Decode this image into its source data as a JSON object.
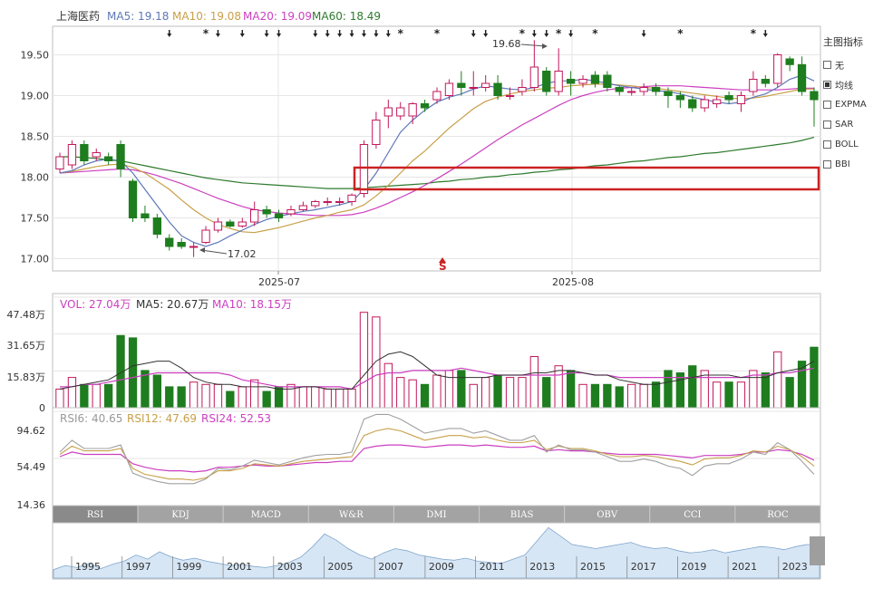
{
  "header": {
    "stock_name": "上海医药",
    "ma5": "MA5: 19.18",
    "ma10": "MA10: 19.08",
    "ma20": "MA20: 19.09",
    "ma60": "MA60: 18.49"
  },
  "colors": {
    "up": "#c2185b",
    "down": "#1e7d1e",
    "ma5": "#5e77b8",
    "ma10": "#c8a048",
    "ma20": "#cc3fc0",
    "ma60": "#2d7a2d",
    "highlight": "#cc2222"
  },
  "side_panel": {
    "title": "主图指标",
    "items": [
      {
        "label": "无",
        "checked": false
      },
      {
        "label": "均线",
        "checked": true
      },
      {
        "label": "EXPMA",
        "checked": false
      },
      {
        "label": "SAR",
        "checked": false
      },
      {
        "label": "BOLL",
        "checked": false
      },
      {
        "label": "BBI",
        "checked": false
      }
    ]
  },
  "main_axis": {
    "ticks": [
      "19.50",
      "19.00",
      "18.50",
      "18.00",
      "17.50",
      "17.00"
    ],
    "x_ticks": [
      "2025-07",
      "2025-08"
    ],
    "high_label": "19.68",
    "low_label": "17.02",
    "s_marker": "S"
  },
  "volume_panel": {
    "vol": "VOL: 27.04万",
    "ma5": "MA5: 20.67万",
    "ma10": "MA10: 18.15万",
    "ticks": [
      "47.48万",
      "31.65万",
      "15.83万",
      "0"
    ]
  },
  "rsi_panel": {
    "rsi6": "RSI6: 40.65",
    "rsi12": "RSI12: 47.69",
    "rsi24": "RSI24: 52.53",
    "ticks": [
      "94.62",
      "54.49",
      "14.36"
    ]
  },
  "tabs": [
    "RSI",
    "KDJ",
    "MACD",
    "W&R",
    "DMI",
    "BIAS",
    "OBV",
    "CCI",
    "ROC"
  ],
  "timeline_years": [
    "1995",
    "1997",
    "1999",
    "2001",
    "2003",
    "2005",
    "2007",
    "2009",
    "2011",
    "2013",
    "2015",
    "2017",
    "2019",
    "2021",
    "2023"
  ],
  "chart_data": {
    "type": "candlestick",
    "yrange": [
      16.85,
      19.85
    ],
    "candles": [
      [
        18.1,
        18.25,
        18.3,
        18.05
      ],
      [
        18.15,
        18.4,
        18.45,
        18.1
      ],
      [
        18.4,
        18.2,
        18.45,
        18.15
      ],
      [
        18.25,
        18.3,
        18.35,
        18.2
      ],
      [
        18.25,
        18.2,
        18.3,
        18.15
      ],
      [
        18.4,
        18.1,
        18.45,
        18.0
      ],
      [
        17.95,
        17.5,
        17.98,
        17.45
      ],
      [
        17.55,
        17.5,
        17.65,
        17.45
      ],
      [
        17.5,
        17.3,
        17.55,
        17.25
      ],
      [
        17.25,
        17.15,
        17.3,
        17.1
      ],
      [
        17.2,
        17.15,
        17.25,
        17.12
      ],
      [
        17.15,
        17.15,
        17.2,
        17.02
      ],
      [
        17.2,
        17.35,
        17.4,
        17.18
      ],
      [
        17.35,
        17.45,
        17.5,
        17.32
      ],
      [
        17.45,
        17.4,
        17.48,
        17.38
      ],
      [
        17.4,
        17.45,
        17.5,
        17.38
      ],
      [
        17.45,
        17.6,
        17.7,
        17.4
      ],
      [
        17.6,
        17.55,
        17.65,
        17.5
      ],
      [
        17.55,
        17.5,
        17.6,
        17.45
      ],
      [
        17.55,
        17.6,
        17.65,
        17.52
      ],
      [
        17.6,
        17.65,
        17.7,
        17.58
      ],
      [
        17.65,
        17.7,
        17.72,
        17.62
      ],
      [
        17.7,
        17.7,
        17.75,
        17.65
      ],
      [
        17.7,
        17.7,
        17.75,
        17.65
      ],
      [
        17.7,
        17.78,
        17.8,
        17.65
      ],
      [
        17.8,
        18.4,
        18.45,
        17.75
      ],
      [
        18.4,
        18.7,
        18.8,
        18.35
      ],
      [
        18.75,
        18.85,
        18.95,
        18.6
      ],
      [
        18.75,
        18.85,
        18.92,
        18.7
      ],
      [
        18.75,
        18.9,
        18.92,
        18.65
      ],
      [
        18.9,
        18.85,
        18.95,
        18.8
      ],
      [
        18.95,
        19.05,
        19.1,
        18.9
      ],
      [
        19.0,
        19.15,
        19.2,
        18.95
      ],
      [
        19.15,
        19.1,
        19.3,
        19.0
      ],
      [
        19.1,
        19.1,
        19.3,
        19.0
      ],
      [
        19.1,
        19.15,
        19.25,
        19.05
      ],
      [
        19.15,
        19.0,
        19.25,
        18.95
      ],
      [
        19.0,
        19.0,
        19.1,
        18.95
      ],
      [
        19.05,
        19.1,
        19.2,
        19.0
      ],
      [
        19.1,
        19.35,
        19.68,
        19.05
      ],
      [
        19.3,
        19.05,
        19.35,
        19.0
      ],
      [
        19.05,
        19.3,
        19.58,
        19.0
      ],
      [
        19.2,
        19.15,
        19.3,
        19.0
      ],
      [
        19.15,
        19.2,
        19.25,
        19.1
      ],
      [
        19.25,
        19.15,
        19.3,
        19.1
      ],
      [
        19.25,
        19.1,
        19.3,
        19.05
      ],
      [
        19.1,
        19.05,
        19.12,
        19.0
      ],
      [
        19.05,
        19.05,
        19.1,
        19.0
      ],
      [
        19.05,
        19.1,
        19.15,
        19.0
      ],
      [
        19.1,
        19.05,
        19.15,
        19.0
      ],
      [
        19.05,
        19.0,
        19.1,
        18.85
      ],
      [
        19.0,
        18.95,
        19.05,
        18.85
      ],
      [
        18.95,
        18.85,
        19.0,
        18.8
      ],
      [
        18.85,
        18.95,
        19.0,
        18.8
      ],
      [
        18.9,
        18.95,
        19.0,
        18.85
      ],
      [
        19.0,
        18.95,
        19.05,
        18.9
      ],
      [
        18.9,
        19.0,
        19.05,
        18.8
      ],
      [
        19.05,
        19.2,
        19.3,
        19.0
      ],
      [
        19.2,
        19.15,
        19.25,
        19.1
      ],
      [
        19.15,
        19.5,
        19.52,
        19.1
      ],
      [
        19.45,
        19.38,
        19.48,
        19.3
      ],
      [
        19.38,
        19.05,
        19.48,
        19.0
      ],
      [
        19.05,
        18.95,
        19.1,
        18.62
      ]
    ],
    "ma5": [
      18.05,
      18.08,
      18.15,
      18.2,
      18.22,
      18.2,
      18.05,
      17.85,
      17.65,
      17.45,
      17.28,
      17.2,
      17.15,
      17.2,
      17.28,
      17.35,
      17.42,
      17.48,
      17.52,
      17.55,
      17.58,
      17.6,
      17.63,
      17.66,
      17.7,
      17.85,
      18.05,
      18.3,
      18.55,
      18.7,
      18.82,
      18.92,
      18.98,
      19.02,
      19.08,
      19.12,
      19.1,
      19.08,
      19.07,
      19.1,
      19.15,
      19.18,
      19.18,
      19.2,
      19.18,
      19.15,
      19.12,
      19.1,
      19.08,
      19.06,
      19.05,
      19.02,
      18.98,
      18.95,
      18.92,
      18.9,
      18.92,
      18.98,
      19.02,
      19.1,
      19.2,
      19.25,
      19.18
    ],
    "ma10": [
      18.05,
      18.07,
      18.1,
      18.13,
      18.15,
      18.16,
      18.12,
      18.05,
      17.95,
      17.85,
      17.72,
      17.6,
      17.5,
      17.42,
      17.37,
      17.33,
      17.32,
      17.35,
      17.38,
      17.42,
      17.46,
      17.5,
      17.53,
      17.57,
      17.6,
      17.66,
      17.77,
      17.9,
      18.05,
      18.2,
      18.32,
      18.46,
      18.6,
      18.72,
      18.84,
      18.93,
      18.98,
      19.02,
      19.05,
      19.07,
      19.09,
      19.1,
      19.12,
      19.13,
      19.14,
      19.14,
      19.13,
      19.12,
      19.1,
      19.09,
      19.07,
      19.05,
      19.03,
      19.01,
      18.99,
      18.97,
      18.96,
      18.97,
      18.99,
      19.02,
      19.05,
      19.08,
      19.08
    ],
    "ma20": [
      18.05,
      18.06,
      18.07,
      18.08,
      18.09,
      18.1,
      18.09,
      18.06,
      18.02,
      17.97,
      17.92,
      17.86,
      17.8,
      17.74,
      17.69,
      17.64,
      17.6,
      17.58,
      17.56,
      17.55,
      17.54,
      17.53,
      17.53,
      17.53,
      17.54,
      17.57,
      17.62,
      17.68,
      17.75,
      17.82,
      17.9,
      17.98,
      18.07,
      18.16,
      18.26,
      18.36,
      18.46,
      18.55,
      18.64,
      18.72,
      18.8,
      18.88,
      18.95,
      19.0,
      19.04,
      19.07,
      19.09,
      19.1,
      19.11,
      19.12,
      19.12,
      19.12,
      19.11,
      19.1,
      19.09,
      19.08,
      19.07,
      19.07,
      19.07,
      19.07,
      19.08,
      19.09,
      19.09
    ],
    "ma60": [
      18.25,
      18.25,
      18.24,
      18.23,
      18.21,
      18.2,
      18.17,
      18.14,
      18.11,
      18.08,
      18.05,
      18.02,
      17.99,
      17.97,
      17.95,
      17.93,
      17.92,
      17.91,
      17.9,
      17.89,
      17.88,
      17.87,
      17.86,
      17.86,
      17.86,
      17.87,
      17.88,
      17.89,
      17.9,
      17.91,
      17.92,
      17.94,
      17.95,
      17.97,
      17.98,
      18.0,
      18.01,
      18.03,
      18.04,
      18.06,
      18.07,
      18.09,
      18.1,
      18.12,
      18.14,
      18.15,
      18.17,
      18.19,
      18.2,
      18.22,
      18.24,
      18.25,
      18.27,
      18.29,
      18.3,
      18.32,
      18.34,
      18.36,
      18.38,
      18.4,
      18.42,
      18.45,
      18.49
    ],
    "volume": [
      8,
      13,
      10,
      10,
      10,
      31,
      30,
      16,
      14,
      9,
      9,
      11,
      10,
      10,
      7,
      9,
      12,
      7,
      9,
      10,
      9,
      9,
      8,
      8,
      8,
      41,
      39,
      19,
      13,
      12,
      10,
      14,
      16,
      16,
      10,
      13,
      14,
      13,
      13,
      22,
      13,
      18,
      16,
      10,
      10,
      10,
      9,
      10,
      10,
      11,
      16,
      15,
      18,
      16,
      11,
      11,
      11,
      16,
      15,
      24,
      13,
      20,
      26
    ],
    "vol_ma5": [
      8,
      9,
      10,
      11,
      12,
      15,
      18,
      19,
      20,
      20,
      17,
      13,
      11,
      10,
      10,
      9,
      9,
      9,
      8,
      8,
      9,
      9,
      8,
      8,
      8,
      14,
      20,
      23,
      24,
      22,
      18,
      14,
      13,
      13,
      13,
      13,
      14,
      14,
      14,
      15,
      15,
      16,
      16,
      15,
      14,
      14,
      12,
      11,
      10,
      10,
      11,
      12,
      13,
      14,
      14,
      14,
      13,
      13,
      13,
      15,
      16,
      17,
      20
    ],
    "vol_ma10": [
      9,
      9,
      10,
      10,
      11,
      12,
      13,
      14,
      15,
      15,
      15,
      15,
      15,
      15,
      14,
      12,
      11,
      10,
      9,
      9,
      9,
      9,
      9,
      9,
      8,
      11,
      14,
      15,
      15,
      16,
      16,
      16,
      16,
      17,
      16,
      15,
      14,
      14,
      14,
      14,
      14,
      14,
      15,
      15,
      14,
      14,
      13,
      13,
      13,
      13,
      13,
      13,
      13,
      13,
      13,
      13,
      13,
      14,
      14,
      15,
      15,
      16,
      17
    ],
    "rsi6": [
      60,
      70,
      63,
      63,
      63,
      66,
      42,
      38,
      35,
      33,
      33,
      33,
      37,
      46,
      45,
      48,
      53,
      51,
      49,
      52,
      55,
      57,
      58,
      58,
      60,
      88,
      92,
      92,
      88,
      82,
      76,
      78,
      80,
      80,
      76,
      78,
      74,
      70,
      70,
      74,
      60,
      66,
      62,
      62,
      60,
      56,
      52,
      52,
      54,
      52,
      48,
      46,
      40,
      48,
      50,
      50,
      54,
      60,
      58,
      68,
      62,
      52,
      41
    ],
    "rsi12": [
      58,
      65,
      61,
      61,
      61,
      63,
      46,
      41,
      39,
      37,
      37,
      36,
      38,
      44,
      44,
      46,
      50,
      49,
      48,
      50,
      52,
      53,
      54,
      55,
      56,
      74,
      78,
      80,
      78,
      74,
      70,
      72,
      74,
      74,
      72,
      73,
      70,
      68,
      68,
      70,
      62,
      65,
      63,
      63,
      61,
      58,
      56,
      56,
      57,
      56,
      54,
      52,
      49,
      54,
      55,
      55,
      57,
      61,
      60,
      65,
      62,
      56,
      48
    ],
    "rsi24": [
      56,
      60,
      58,
      58,
      58,
      58,
      50,
      47,
      45,
      44,
      44,
      43,
      44,
      47,
      47,
      48,
      49,
      48,
      48,
      49,
      50,
      51,
      51,
      52,
      52,
      63,
      65,
      66,
      66,
      65,
      64,
      65,
      66,
      66,
      65,
      66,
      65,
      64,
      64,
      65,
      61,
      62,
      61,
      61,
      60,
      59,
      58,
      58,
      58,
      58,
      57,
      56,
      55,
      57,
      57,
      57,
      58,
      60,
      60,
      62,
      61,
      58,
      53
    ],
    "timeline": [
      8,
      12,
      10,
      14,
      9,
      13,
      16,
      22,
      18,
      25,
      20,
      17,
      19,
      16,
      14,
      12,
      13,
      11,
      10,
      12,
      15,
      20,
      30,
      42,
      36,
      28,
      22,
      18,
      24,
      28,
      26,
      22,
      20,
      18,
      17,
      19,
      16,
      15,
      14,
      18,
      22,
      35,
      48,
      40,
      32,
      30,
      28,
      30,
      32,
      34,
      30,
      28,
      29,
      26,
      24,
      25,
      27,
      24,
      26,
      28,
      30,
      29,
      27,
      30,
      32,
      30
    ]
  }
}
